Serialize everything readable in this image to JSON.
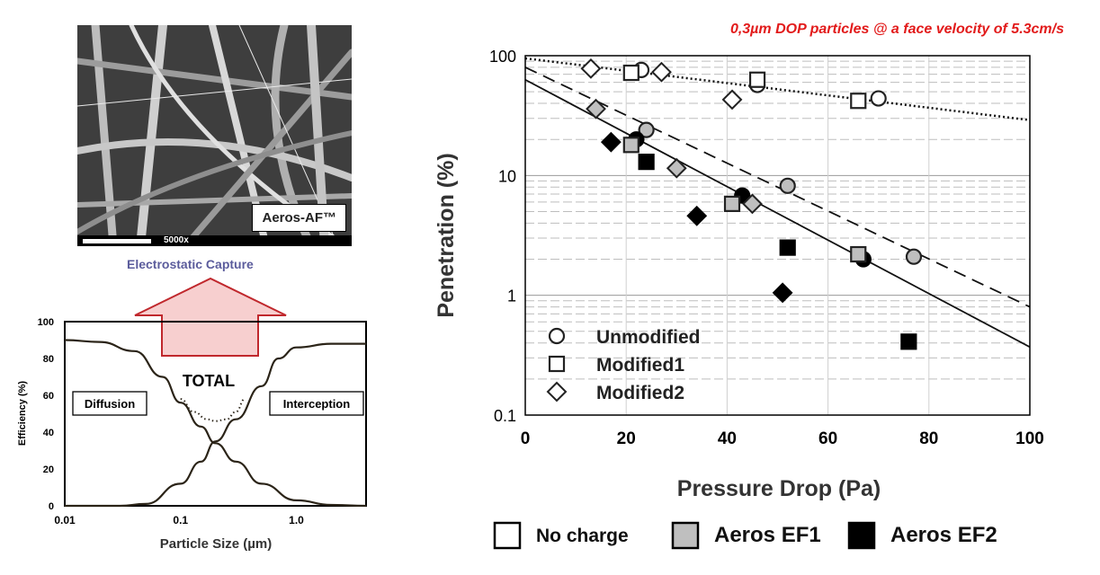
{
  "sem_image": {
    "label": "Aeros-AF™",
    "magnification": "5000x"
  },
  "electrostatic_label": "Electrostatic Capture",
  "chart_data": [
    {
      "type": "line",
      "xlabel": "Particle Size (µm)",
      "ylabel": "Efficiency (%)",
      "xscale": "log",
      "xlim": [
        0.01,
        4
      ],
      "ylim": [
        0,
        100
      ],
      "x_ticks": [
        "0.01",
        "0.1",
        "1.0"
      ],
      "y_ticks": [
        "0",
        "20",
        "40",
        "60",
        "80",
        "100"
      ],
      "annotations": {
        "total": "TOTAL",
        "diffusion": "Diffusion",
        "interception": "Interception"
      },
      "series": [
        {
          "x": [
            0.01,
            0.02,
            0.04,
            0.07,
            0.1,
            0.15,
            0.2,
            0.3,
            0.5,
            1.0,
            2.0,
            4.0
          ],
          "values": [
            90,
            89,
            84,
            70,
            56,
            43,
            34,
            24,
            12,
            3,
            0.5,
            0
          ]
        },
        {
          "x": [
            0.01,
            0.03,
            0.05,
            0.1,
            0.15,
            0.2,
            0.3,
            0.5,
            0.7,
            1.0,
            2.0,
            4.0
          ],
          "values": [
            0,
            0,
            1,
            12,
            24,
            35,
            47,
            65,
            80,
            86,
            88,
            88
          ]
        },
        {
          "x": [
            0.1,
            0.13,
            0.17,
            0.2,
            0.25,
            0.3,
            0.36
          ],
          "values": [
            58,
            51,
            47,
            46,
            47,
            51,
            58
          ],
          "style": "dotted"
        }
      ]
    },
    {
      "type": "scatter",
      "title": "0,3µm DOP particles @ a face velocity of 5.3cm/s",
      "xlabel": "Pressure Drop (Pa)",
      "ylabel": "Penetration (%)",
      "xlim": [
        0,
        100
      ],
      "ylim": [
        0.1,
        100
      ],
      "yscale": "log",
      "x_ticks": [
        "0",
        "20",
        "40",
        "60",
        "80",
        "100"
      ],
      "y_ticks": [
        "0.1",
        "1",
        "10",
        "100"
      ],
      "grid": true,
      "shape_legend": [
        "Unmodified",
        "Modified1",
        "Modified2"
      ],
      "fill_legend": [
        {
          "name": "No charge",
          "color": "#ffffff"
        },
        {
          "name": "Aeros EF1",
          "color": "#bfbfbf"
        },
        {
          "name": "Aeros EF2",
          "color": "#000000"
        }
      ],
      "points": [
        {
          "shape": "circle",
          "fill": "No charge",
          "x": 23,
          "y": 76
        },
        {
          "shape": "circle",
          "fill": "No charge",
          "x": 46,
          "y": 57
        },
        {
          "shape": "circle",
          "fill": "No charge",
          "x": 70,
          "y": 44
        },
        {
          "shape": "circle",
          "fill": "Aeros EF1",
          "x": 24,
          "y": 24
        },
        {
          "shape": "circle",
          "fill": "Aeros EF1",
          "x": 52,
          "y": 8.2
        },
        {
          "shape": "circle",
          "fill": "Aeros EF1",
          "x": 77,
          "y": 2.1
        },
        {
          "shape": "circle",
          "fill": "Aeros EF2",
          "x": 22,
          "y": 20
        },
        {
          "shape": "circle",
          "fill": "Aeros EF2",
          "x": 43,
          "y": 6.8
        },
        {
          "shape": "circle",
          "fill": "Aeros EF2",
          "x": 67,
          "y": 2.0
        },
        {
          "shape": "square",
          "fill": "No charge",
          "x": 21,
          "y": 72
        },
        {
          "shape": "square",
          "fill": "No charge",
          "x": 46,
          "y": 63
        },
        {
          "shape": "square",
          "fill": "No charge",
          "x": 66,
          "y": 42
        },
        {
          "shape": "square",
          "fill": "Aeros EF1",
          "x": 21,
          "y": 18
        },
        {
          "shape": "square",
          "fill": "Aeros EF1",
          "x": 41,
          "y": 5.8
        },
        {
          "shape": "square",
          "fill": "Aeros EF1",
          "x": 66,
          "y": 2.2
        },
        {
          "shape": "square",
          "fill": "Aeros EF2",
          "x": 24,
          "y": 13
        },
        {
          "shape": "square",
          "fill": "Aeros EF2",
          "x": 52,
          "y": 2.5
        },
        {
          "shape": "square",
          "fill": "Aeros EF2",
          "x": 76,
          "y": 0.41
        },
        {
          "shape": "diamond",
          "fill": "No charge",
          "x": 13,
          "y": 78
        },
        {
          "shape": "diamond",
          "fill": "No charge",
          "x": 27,
          "y": 73
        },
        {
          "shape": "diamond",
          "fill": "No charge",
          "x": 41,
          "y": 43
        },
        {
          "shape": "diamond",
          "fill": "Aeros EF1",
          "x": 14,
          "y": 36
        },
        {
          "shape": "diamond",
          "fill": "Aeros EF1",
          "x": 30,
          "y": 11.5
        },
        {
          "shape": "diamond",
          "fill": "Aeros EF1",
          "x": 45,
          "y": 5.8
        },
        {
          "shape": "diamond",
          "fill": "Aeros EF2",
          "x": 17,
          "y": 19
        },
        {
          "shape": "diamond",
          "fill": "Aeros EF2",
          "x": 34,
          "y": 4.6
        },
        {
          "shape": "diamond",
          "fill": "Aeros EF2",
          "x": 51,
          "y": 1.05
        }
      ],
      "trend_lines": [
        {
          "style": "solid",
          "x": [
            0,
            100
          ],
          "y": [
            63,
            0.37
          ]
        },
        {
          "style": "dashed",
          "x": [
            0,
            100
          ],
          "y": [
            80,
            0.8
          ]
        },
        {
          "style": "dotted",
          "x": [
            0,
            100
          ],
          "y": [
            95,
            29
          ]
        }
      ]
    }
  ]
}
